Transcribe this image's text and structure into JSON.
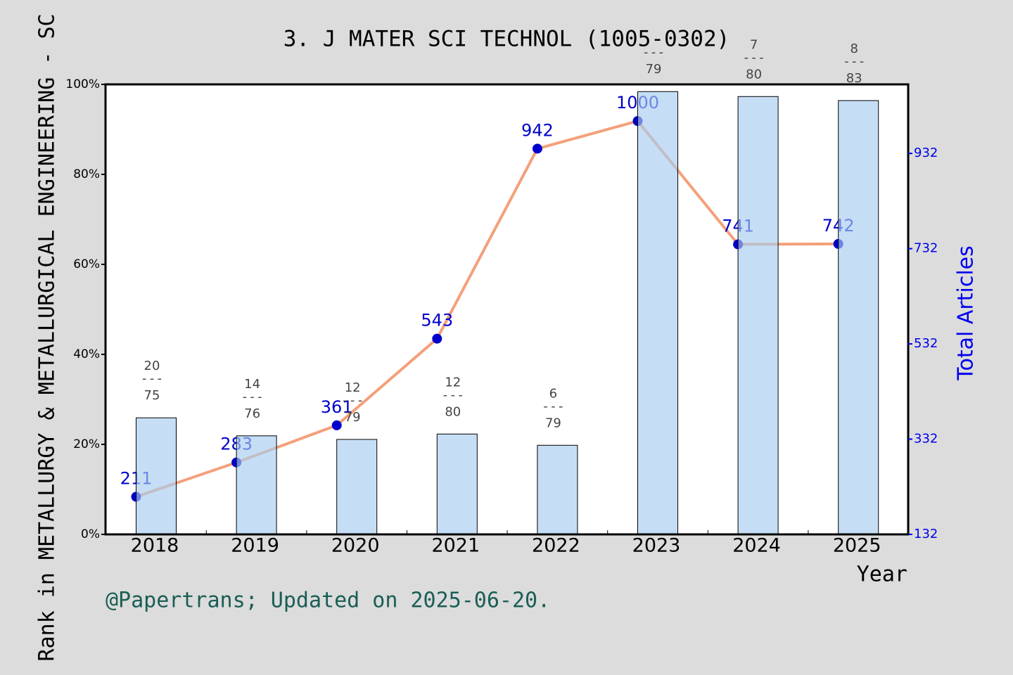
{
  "chart_data": {
    "type": "bar-line",
    "title": "3. J MATER SCI TECHNOL (1005-0302)",
    "xlabel": "Year",
    "ylabel": "Rank in METALLURGY & METALLURGICAL ENGINEERING - SC",
    "y2label": "Total Articles",
    "footnote": "@Papertrans; Updated on 2025-06-20.",
    "categories": [
      "2018",
      "2019",
      "2020",
      "2021",
      "2022",
      "2023",
      "2024",
      "2025"
    ],
    "bars": {
      "color": "#a8cdf0",
      "values": [
        25.9,
        21.9,
        21.1,
        22.3,
        19.8,
        98.4,
        97.3,
        96.4
      ]
    },
    "line": {
      "axis": "y2",
      "color": "#f4a07a",
      "marker_color": "#0000cc",
      "values": [
        211,
        283,
        361,
        543,
        942,
        1000,
        741,
        742
      ]
    },
    "rank_separator": "---",
    "ranks": [
      {
        "rank": "20",
        "total": "75"
      },
      {
        "rank": "14",
        "total": "76"
      },
      {
        "rank": "12",
        "total": "79"
      },
      {
        "rank": "12",
        "total": "80"
      },
      {
        "rank": "6",
        "total": "79"
      },
      {
        "rank": null,
        "total": "79"
      },
      {
        "rank": "7",
        "total": "80"
      },
      {
        "rank": "8",
        "total": "83"
      }
    ],
    "ylim": [
      0,
      100
    ],
    "yticks": [
      {
        "value": 0,
        "label": "0%"
      },
      {
        "value": 20,
        "label": "20%"
      },
      {
        "value": 40,
        "label": "40%"
      },
      {
        "value": 60,
        "label": "60%"
      },
      {
        "value": 80,
        "label": "80%"
      },
      {
        "value": 100,
        "label": "100%"
      }
    ],
    "y2lim": [
      132,
      1077
    ],
    "y2ticks": [
      132,
      332,
      532,
      732,
      932
    ]
  }
}
